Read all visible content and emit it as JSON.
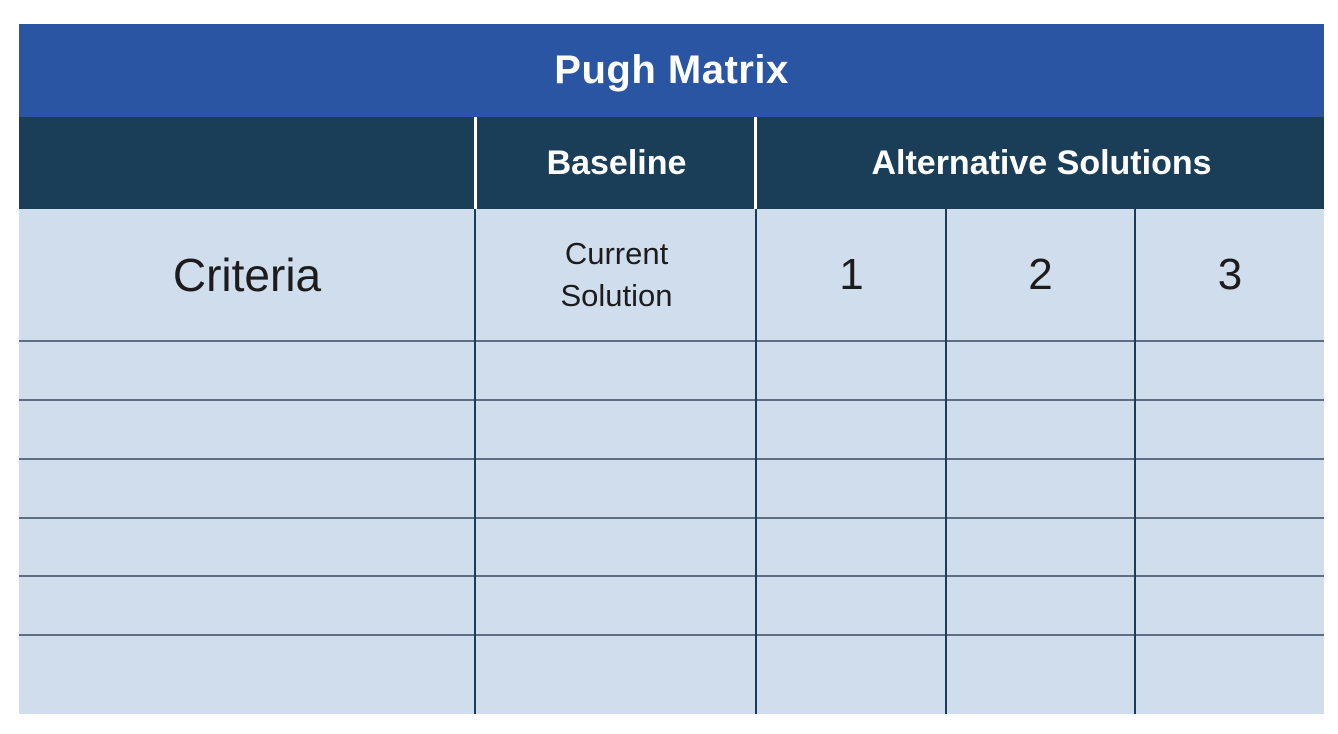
{
  "title": "Pugh Matrix",
  "header": {
    "baseline": "Baseline",
    "alternatives": "Alternative Solutions"
  },
  "labels": {
    "criteria": "Criteria",
    "current_solution": "Current Solution",
    "alt_1": "1",
    "alt_2": "2",
    "alt_3": "3"
  },
  "colors": {
    "title_bg": "#2a55a2",
    "header_bg": "#1b3e58",
    "body_bg": "#d0dded"
  }
}
